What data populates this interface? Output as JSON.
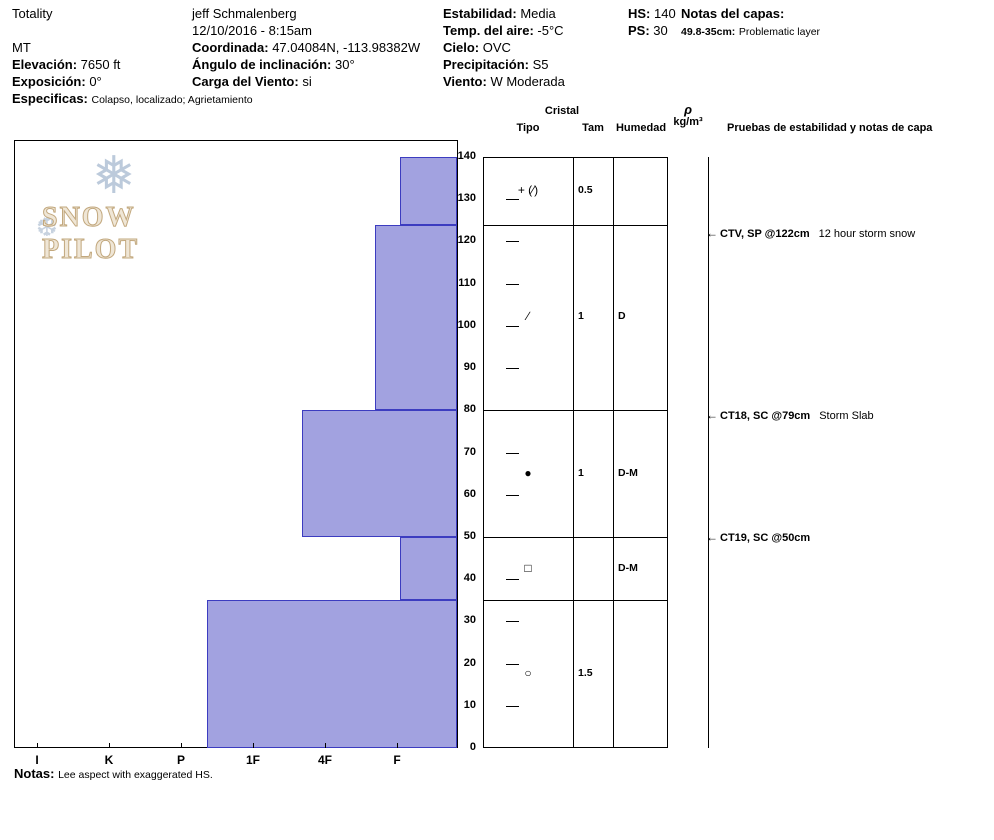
{
  "header": {
    "site_name": "Totality",
    "state": "MT",
    "elevation_label": "Elevación:",
    "elevation_value": "7650 ft",
    "aspect_label": "Exposición:",
    "aspect_value": "0°",
    "specifics_label": "Especificas:",
    "specifics_value": "Colapso, localizado;  Agrietamiento",
    "observer": "jeff Schmalenberg",
    "datetime": "12/10/2016 - 8:15am",
    "coords_label": "Coordinada:",
    "coords_value": "47.04084N, -113.98382W",
    "slope_angle_label": "Ángulo de inclinación:",
    "slope_angle_value": "30°",
    "wind_loading_label": "Carga del Viento:",
    "wind_loading_value": "si",
    "stability_label": "Estabilidad:",
    "stability_value": "Media",
    "air_temp_label": "Temp. del aire:",
    "air_temp_value": "-5°C",
    "sky_label": "Cielo:",
    "sky_value": "OVC",
    "precip_label": "Precipitación:",
    "precip_value": "S5",
    "wind_label": "Viento:",
    "wind_value": "W Moderada",
    "hs_label": "HS:",
    "hs_value": "140",
    "ps_label": "PS:",
    "ps_value": "30",
    "layer_notes_label": "Notas del capas:",
    "layer_note_range": "49.8-35cm:",
    "layer_note_text": "Problematic layer"
  },
  "logo": {
    "text": "SNOW PILOT"
  },
  "columns": {
    "cristal": "Cristal",
    "tipo": "Tipo",
    "tam": "Tam",
    "humedad": "Humedad",
    "rho": "ρ",
    "rho_units": "kg/m³",
    "tests": "Pruebas de estabilidad y notas de capa"
  },
  "footer": {
    "label": "Notas:",
    "text": "Lee aspect with exaggerated HS."
  },
  "chart_data": {
    "type": "bar",
    "title": "Snow profile — hand hardness by depth",
    "depth_unit": "cm",
    "hs_cm": 140,
    "ps_cm": 30,
    "ylim": [
      0,
      140
    ],
    "depth_ticks": [
      0,
      10,
      20,
      30,
      40,
      50,
      60,
      70,
      80,
      90,
      100,
      110,
      120,
      130,
      140
    ],
    "hardness_ticks": [
      "I",
      "K",
      "P",
      "1F",
      "4F",
      "F"
    ],
    "bar_fill": "#a2a2e0",
    "bar_border": "#3c3cc0",
    "layers": [
      {
        "top_cm": 140,
        "bottom_cm": 124,
        "hardness": "F-",
        "hardness_value": 0.96,
        "grain_type": "+ (∕)",
        "grain_size": "0.5",
        "moisture": ""
      },
      {
        "top_cm": 124,
        "bottom_cm": 80,
        "hardness": "4F-F",
        "hardness_value": 1.31,
        "grain_type": "∕",
        "grain_size": "1",
        "moisture": "D"
      },
      {
        "top_cm": 80,
        "bottom_cm": 50,
        "hardness": "4F+",
        "hardness_value": 2.32,
        "grain_type": "●",
        "grain_size": "1",
        "moisture": "D-M"
      },
      {
        "top_cm": 50,
        "bottom_cm": 35,
        "hardness": "F-",
        "hardness_value": 0.96,
        "grain_type": "□",
        "grain_size": "",
        "moisture": "D-M"
      },
      {
        "top_cm": 35,
        "bottom_cm": 0,
        "hardness": "P-1F",
        "hardness_value": 3.64,
        "grain_type": "○",
        "grain_size": "1.5",
        "moisture": ""
      }
    ],
    "stability_tests": [
      {
        "depth_cm": 122,
        "label": "CTV, SP @122cm",
        "comment": "12 hour storm snow"
      },
      {
        "depth_cm": 79,
        "label": "CT18, SC @79cm",
        "comment": "Storm Slab"
      },
      {
        "depth_cm": 50,
        "label": "CT19, SC @50cm",
        "comment": ""
      }
    ]
  }
}
